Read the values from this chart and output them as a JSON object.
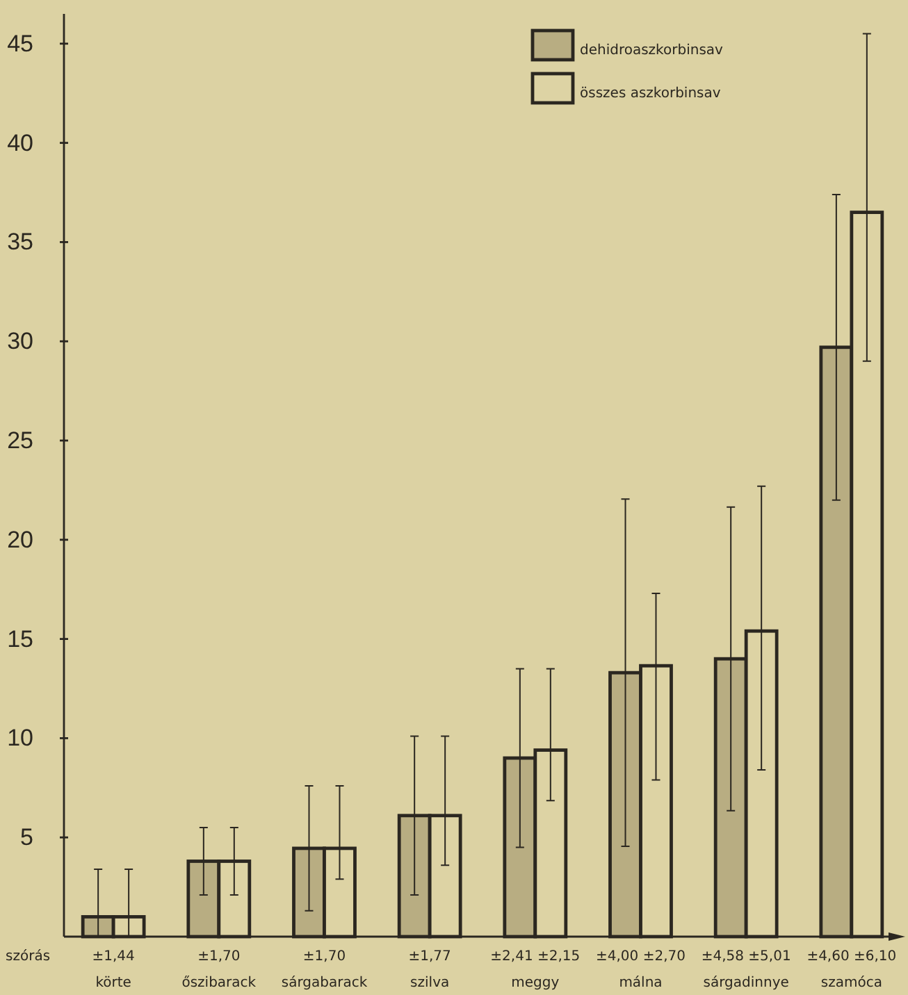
{
  "chart_data": {
    "type": "bar",
    "categories": [
      "körte",
      "őszibarack",
      "sárgabarack",
      "szilva",
      "meggy",
      "málna",
      "sárgadinnye",
      "szamóca"
    ],
    "series": [
      {
        "name": "dehidroaszkorbinsav",
        "color": "#b8ad82",
        "values": [
          1.0,
          3.8,
          4.45,
          6.1,
          9.0,
          13.3,
          14.0,
          29.7
        ],
        "errors": [
          [
            0,
            3.4
          ],
          1.7,
          3.15,
          4.0,
          4.5,
          8.75,
          7.65,
          7.7
        ]
      },
      {
        "name": "összes aszkorbinsav",
        "color": "#ddd3a4",
        "values": [
          1.0,
          3.8,
          4.45,
          6.1,
          9.4,
          13.65,
          15.4,
          36.5
        ],
        "errors": [
          [
            0,
            3.4
          ],
          1.7,
          [
            2.9,
            7.6
          ],
          [
            3.6,
            10.1
          ],
          [
            6.85,
            13.5
          ],
          [
            7.9,
            17.3
          ],
          [
            8.4,
            22.7
          ],
          [
            29.0,
            45.5
          ]
        ]
      }
    ],
    "ylim": [
      0,
      46.5
    ],
    "yticks": [
      5,
      10,
      15,
      20,
      25,
      30,
      35,
      40,
      45
    ],
    "grid": false,
    "legend": "top right",
    "annotations": [
      "szórás",
      "±1,44",
      "±1,70",
      "±1,70",
      "±1,77",
      "±2,41 ±2,15",
      "±4,00 ±2,70",
      "±4,58 ±5,01",
      "±4,60 ±6,10"
    ]
  }
}
